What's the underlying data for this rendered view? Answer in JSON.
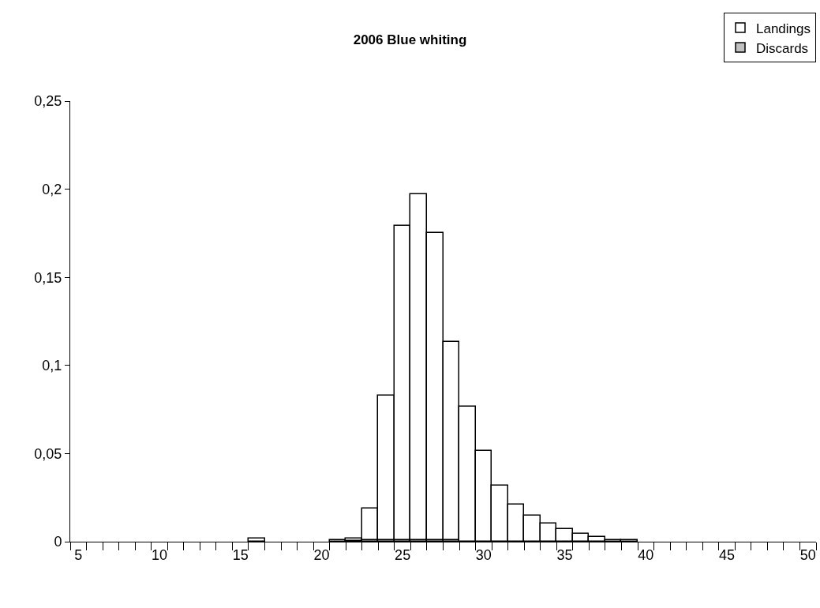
{
  "chart_data": {
    "type": "bar",
    "title": "2006 Blue whiting",
    "series": [
      {
        "name": "Landings",
        "color": "#ffffff",
        "x": [
          16,
          21,
          22,
          23,
          24,
          25,
          26,
          27,
          28,
          29,
          30,
          31,
          32,
          33,
          34,
          35,
          36,
          37,
          38,
          39
        ],
        "values": [
          0.0017,
          0.001,
          0.002,
          0.0186,
          0.083,
          0.179,
          0.197,
          0.175,
          0.1135,
          0.0767,
          0.0515,
          0.0318,
          0.021,
          0.0148,
          0.0103,
          0.007,
          0.0046,
          0.0025,
          0.001,
          0.001
        ]
      },
      {
        "name": "Discards",
        "color": "#c0c0c0",
        "x": [
          22,
          23,
          24,
          25,
          26,
          27,
          28
        ],
        "values": [
          0.0005,
          0.0008,
          0.001,
          0.001,
          0.001,
          0.001,
          0.0008
        ]
      }
    ],
    "xlim": [
      4.5,
      50.5
    ],
    "xticks": [
      5,
      10,
      15,
      20,
      25,
      30,
      35,
      40,
      45,
      50,
      {
        "value": 4.5,
        "label": null
      },
      {
        "value": 5.5,
        "label": null
      },
      {
        "value": 6.5,
        "label": null
      },
      {
        "value": 7.5,
        "label": null
      },
      {
        "value": 8.5,
        "label": null
      },
      {
        "value": 9.5,
        "label": null
      },
      {
        "value": 10.5,
        "label": null
      },
      {
        "value": 11.5,
        "label": null
      },
      {
        "value": 12.5,
        "label": null
      },
      {
        "value": 13.5,
        "label": null
      },
      {
        "value": 14.5,
        "label": null
      },
      {
        "value": 15.5,
        "label": null
      },
      {
        "value": 16.5,
        "label": null
      },
      {
        "value": 17.5,
        "label": null
      },
      {
        "value": 18.5,
        "label": null
      },
      {
        "value": 19.5,
        "label": null
      },
      {
        "value": 20.5,
        "label": null
      },
      {
        "value": 21.5,
        "label": null
      },
      {
        "value": 22.5,
        "label": null
      },
      {
        "value": 23.5,
        "label": null
      },
      {
        "value": 24.5,
        "label": null
      },
      {
        "value": 25.5,
        "label": null
      },
      {
        "value": 26.5,
        "label": null
      },
      {
        "value": 27.5,
        "label": null
      },
      {
        "value": 28.5,
        "label": null
      },
      {
        "value": 29.5,
        "label": null
      },
      {
        "value": 30.5,
        "label": null
      },
      {
        "value": 31.5,
        "label": null
      },
      {
        "value": 32.5,
        "label": null
      },
      {
        "value": 33.5,
        "label": null
      },
      {
        "value": 34.5,
        "label": null
      },
      {
        "value": 35.5,
        "label": null
      },
      {
        "value": 36.5,
        "label": null
      },
      {
        "value": 37.5,
        "label": null
      },
      {
        "value": 38.5,
        "label": null
      },
      {
        "value": 39.5,
        "label": null
      },
      {
        "value": 40.5,
        "label": null
      },
      {
        "value": 41.5,
        "label": null
      },
      {
        "value": 42.5,
        "label": null
      },
      {
        "value": 43.5,
        "label": null
      },
      {
        "value": 44.5,
        "label": null
      },
      {
        "value": 45.5,
        "label": null
      },
      {
        "value": 46.5,
        "label": null
      },
      {
        "value": 47.5,
        "label": null
      },
      {
        "value": 48.5,
        "label": null
      },
      {
        "value": 49.5,
        "label": null
      },
      {
        "value": 50.5,
        "label": null
      }
    ],
    "ylim": [
      0,
      0.25
    ],
    "yticks": [
      0,
      {
        "value": 0.05,
        "label": "0,05"
      },
      {
        "value": 0.1,
        "label": "0,1"
      },
      {
        "value": 0.15,
        "label": "0,15"
      },
      {
        "value": 0.2,
        "label": "0,2"
      },
      {
        "value": 0.25,
        "label": "0,25"
      }
    ],
    "grid": false,
    "legend": "top right"
  }
}
